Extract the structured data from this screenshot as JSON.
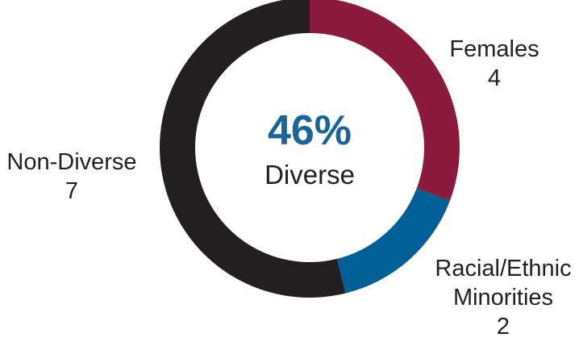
{
  "chart_data": {
    "type": "pie",
    "categories": [
      "Females",
      "Racial/Ethnic Minorities",
      "Non-Diverse"
    ],
    "label_lines": [
      [
        "Females"
      ],
      [
        "Racial/Ethnic",
        "Minorities"
      ],
      [
        "Non-Diverse"
      ]
    ],
    "values": [
      4,
      2,
      7
    ],
    "colors": [
      "#8b1a3c",
      "#005f96",
      "#231f20"
    ],
    "center_value": "46%",
    "center_text": "Diverse",
    "center_value_color": "#1a6598"
  }
}
